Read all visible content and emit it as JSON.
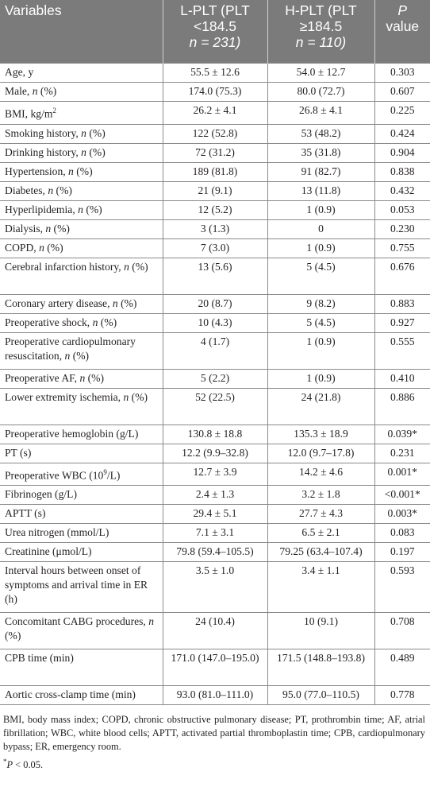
{
  "headers": {
    "variables": "Variables",
    "lplt": [
      "L-PLT (PLT",
      "<184.5",
      "n = 231)"
    ],
    "hplt": [
      "H-PLT (PLT",
      "≥184.5",
      "n = 110)"
    ],
    "pvalue": [
      "P",
      "value"
    ]
  },
  "rows": [
    {
      "label": "Age, y",
      "l": "55.5 ± 12.6",
      "h": "54.0 ± 12.7",
      "p": "0.303"
    },
    {
      "label": "Male, n (%)",
      "l": "174.0 (75.3)",
      "h": "80.0 (72.7)",
      "p": "0.607"
    },
    {
      "label": "BMI, kg/m2",
      "l": "26.2 ± 4.1",
      "h": "26.8 ± 4.1",
      "p": "0.225"
    },
    {
      "label": "Smoking history, n (%)",
      "l": "122 (52.8)",
      "h": "53 (48.2)",
      "p": "0.424"
    },
    {
      "label": "Drinking history, n (%)",
      "l": "72 (31.2)",
      "h": "35 (31.8)",
      "p": "0.904"
    },
    {
      "label": "Hypertension, n (%)",
      "l": "189 (81.8)",
      "h": "91 (82.7)",
      "p": "0.838"
    },
    {
      "label": "Diabetes, n (%)",
      "l": "21 (9.1)",
      "h": "13 (11.8)",
      "p": "0.432"
    },
    {
      "label": "Hyperlipidemia, n (%)",
      "l": "12 (5.2)",
      "h": "1 (0.9)",
      "p": "0.053"
    },
    {
      "label": "Dialysis, n (%)",
      "l": "3 (1.3)",
      "h": "0",
      "p": "0.230"
    },
    {
      "label": "COPD, n (%)",
      "l": "7 (3.0)",
      "h": "1 (0.9)",
      "p": "0.755"
    },
    {
      "label": "Cerebral infarction history, n (%)",
      "l": "13 (5.6)",
      "h": "5 (4.5)",
      "p": "0.676"
    },
    {
      "label": "Coronary artery disease, n (%)",
      "l": "20 (8.7)",
      "h": "9 (8.2)",
      "p": "0.883"
    },
    {
      "label": "Preoperative shock, n (%)",
      "l": "10 (4.3)",
      "h": "5 (4.5)",
      "p": "0.927"
    },
    {
      "label": "Preoperative cardiopulmonary resuscitation, n (%)",
      "l": "4 (1.7)",
      "h": "1 (0.9)",
      "p": "0.555"
    },
    {
      "label": "Preoperative AF, n (%)",
      "l": "5 (2.2)",
      "h": "1 (0.9)",
      "p": "0.410"
    },
    {
      "label": "Lower extremity ischemia, n (%)",
      "l": "52 (22.5)",
      "h": "24 (21.8)",
      "p": "0.886"
    },
    {
      "label": "Preoperative hemoglobin (g/L)",
      "l": "130.8 ± 18.8",
      "h": "135.3 ± 18.9",
      "p": "0.039*"
    },
    {
      "label": "PT (s)",
      "l": "12.2 (9.9–32.8)",
      "h": "12.0 (9.7–17.8)",
      "p": "0.231"
    },
    {
      "label": "Preoperative WBC (109/L)",
      "l": "12.7 ± 3.9",
      "h": "14.2 ± 4.6",
      "p": "0.001*"
    },
    {
      "label": "Fibrinogen (g/L)",
      "l": "2.4 ± 1.3",
      "h": "3.2 ± 1.8",
      "p": "<0.001*"
    },
    {
      "label": "APTT (s)",
      "l": "29.4 ± 5.1",
      "h": "27.7 ± 4.3",
      "p": "0.003*"
    },
    {
      "label": "Urea nitrogen (mmol/L)",
      "l": "7.1 ± 3.1",
      "h": "6.5 ± 2.1",
      "p": "0.083"
    },
    {
      "label": "Creatinine (μmol/L)",
      "l": "79.8 (59.4–105.5)",
      "h": "79.25 (63.4–107.4)",
      "p": "0.197"
    },
    {
      "label": "Interval hours between onset of symptoms and arrival time in ER (h)",
      "l": "3.5 ± 1.0",
      "h": "3.4 ± 1.1",
      "p": "0.593"
    },
    {
      "label": "Concomitant CABG procedures, n (%)",
      "l": "24 (10.4)",
      "h": "10 (9.1)",
      "p": "0.708"
    },
    {
      "label": "CPB time (min)",
      "l": "171.0 (147.0–195.0)",
      "h": "171.5 (148.8–193.8)",
      "p": "0.489"
    },
    {
      "label": "Aortic cross-clamp time (min)",
      "l": "93.0 (81.0–111.0)",
      "h": "95.0 (77.0–110.5)",
      "p": "0.778"
    }
  ],
  "footnote": "BMI, body mass index; COPD, chronic obstructive pulmonary disease; PT, prothrombin time; AF, atrial fibrillation; WBC, white blood cells; APTT, activated partial thromboplastin time; CPB, cardiopulmonary bypass; ER, emergency room.",
  "significance_note": "*P < 0.05."
}
